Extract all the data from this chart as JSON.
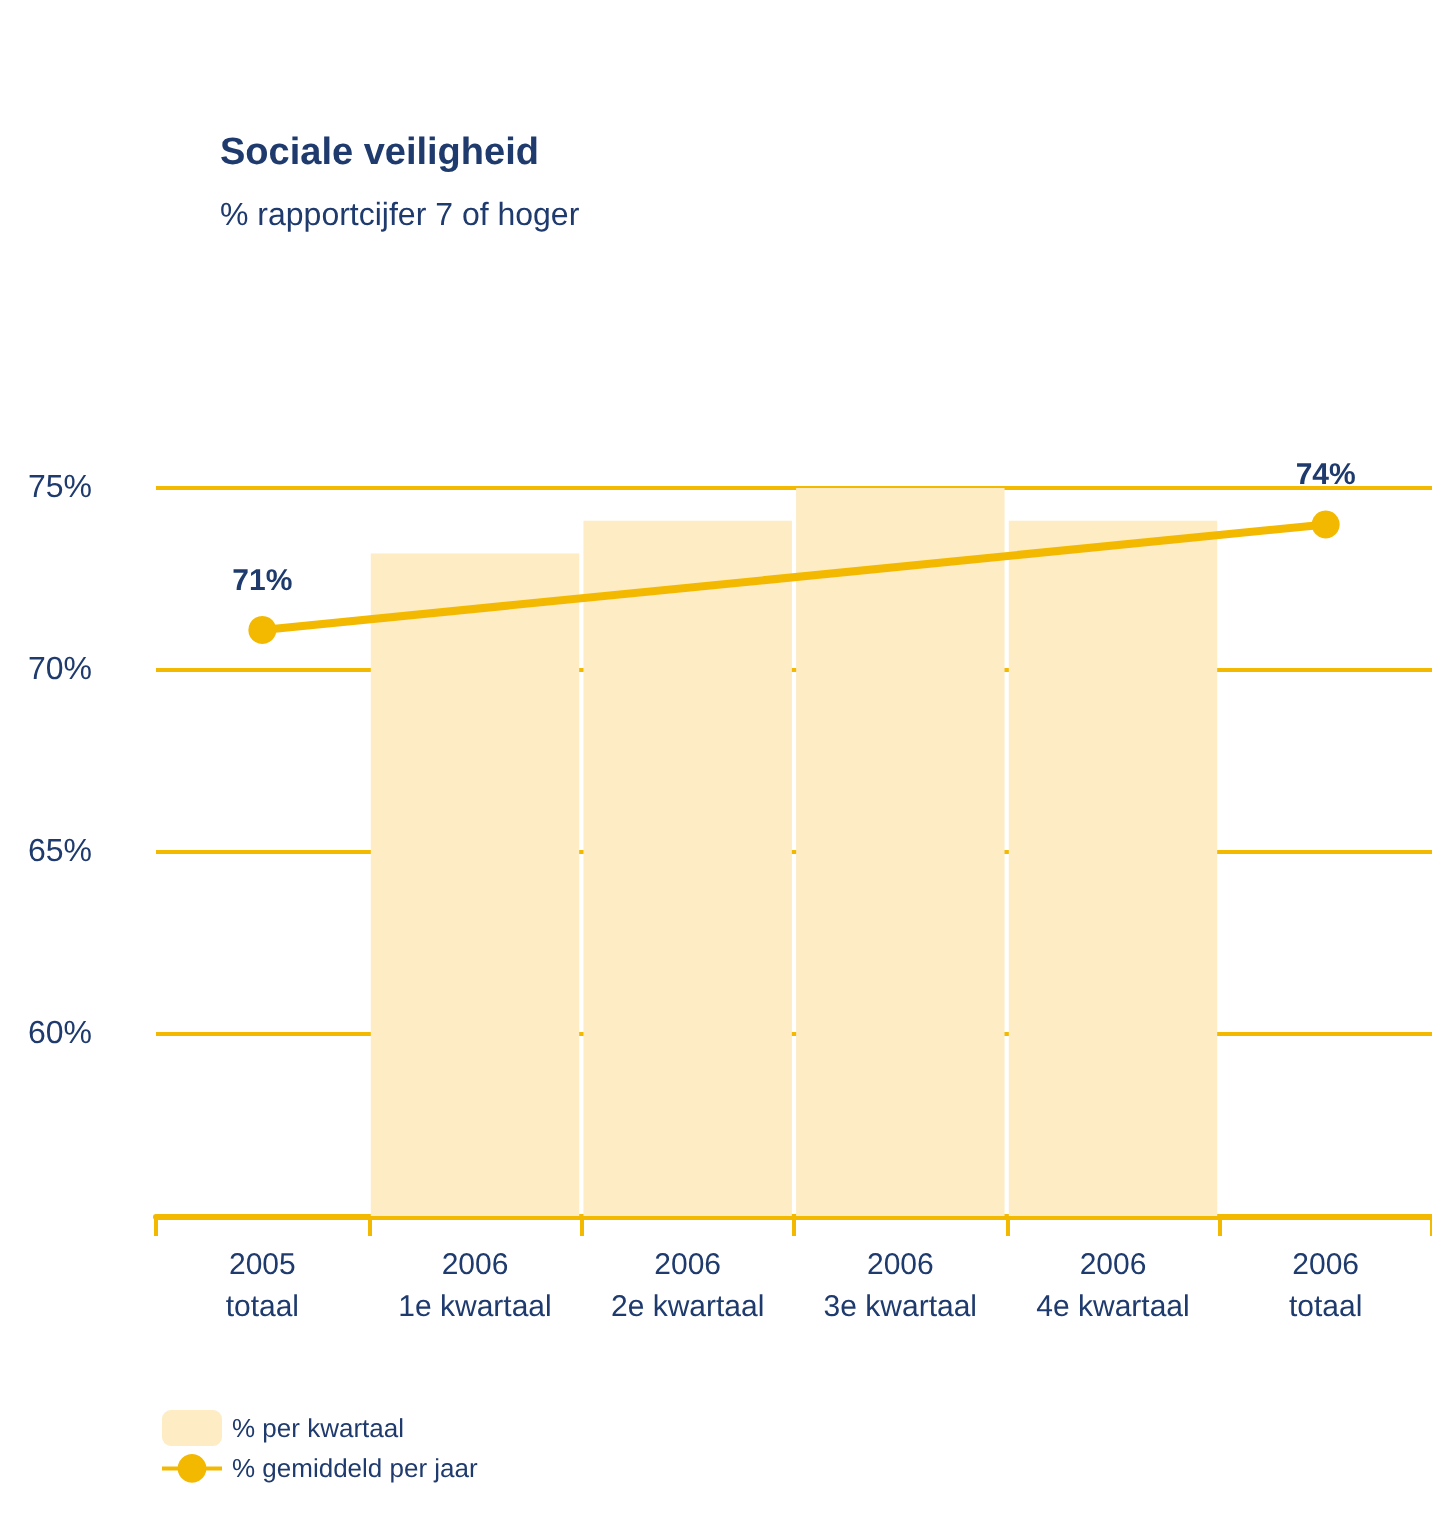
{
  "chart_data": {
    "type": "bar",
    "title": "Sociale veiligheid",
    "subtitle": "% rapportcijfer 7 of hoger",
    "categories": [
      "2005\ntotaal",
      "2006\n1e kwartaal",
      "2006\n2e kwartaal",
      "2006\n3e kwartaal",
      "2006\n4e kwartaal",
      "2006\ntotaal"
    ],
    "series": [
      {
        "name": "% per kwartaal",
        "color": "#fdecc4",
        "values": [
          null,
          73.2,
          74.1,
          75.0,
          74.1,
          null
        ]
      },
      {
        "name": "% gemiddeld per jaar",
        "type": "line",
        "color": "#f2b900",
        "values": [
          71.1,
          null,
          null,
          null,
          null,
          74.0
        ],
        "value_labels": [
          "71%",
          null,
          null,
          null,
          null,
          "74%"
        ]
      }
    ],
    "ylim": [
      55,
      75
    ],
    "yticks": [
      {
        "value": 60,
        "label": "60%"
      },
      {
        "value": 65,
        "label": "65%"
      },
      {
        "value": 70,
        "label": "70%"
      },
      {
        "value": 75,
        "label": "75%"
      }
    ],
    "grid": "y",
    "legend": "bottom left",
    "marker": "circle",
    "line_style": "solid"
  }
}
